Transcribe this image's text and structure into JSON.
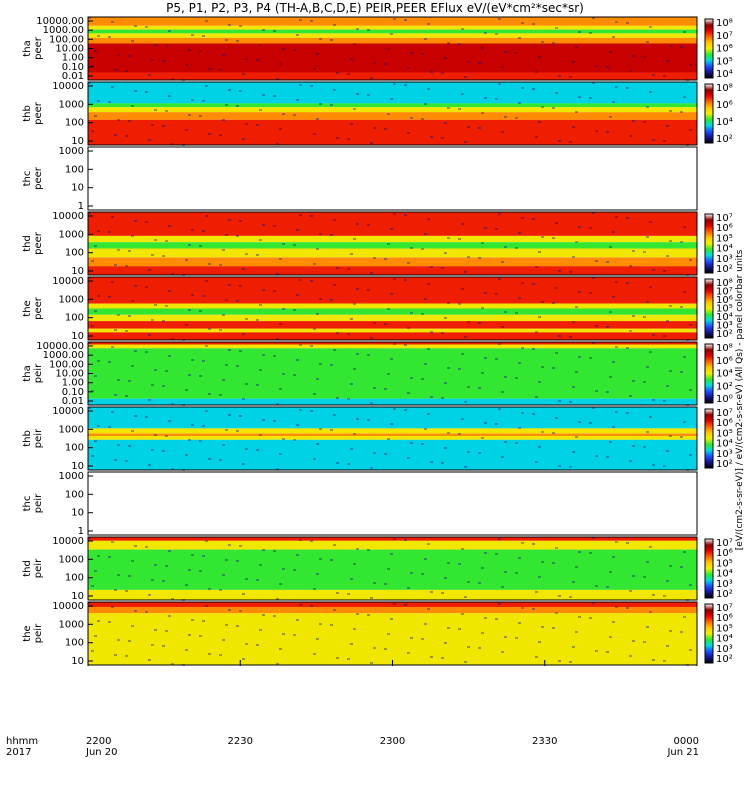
{
  "title": "P5, P1, P2, P3, P4 (TH-A,B,C,D,E) PEIR,PEER EFlux eV/(eV*cm²*sec*sr)",
  "x_axis": {
    "label_rows": [
      "hhmm",
      "2017"
    ],
    "ticks": [
      {
        "time": "2200",
        "date": "Jun 20"
      },
      {
        "time": "2230",
        "date": ""
      },
      {
        "time": "2300",
        "date": ""
      },
      {
        "time": "2330",
        "date": ""
      },
      {
        "time": "0000",
        "date": "Jun 21"
      }
    ]
  },
  "right_axis_text": "[eV/(cm2-s-sr-eV)] / eV/(cm2-s-sr-eV) (All Qs) - panel colorbar units",
  "colors": {
    "dark_red": "#c80000",
    "red": "#f01e00",
    "orange": "#ff8c00",
    "yellow": "#f0e600",
    "green": "#32e632",
    "cyan": "#00d2e6",
    "blue": "#1e32dc",
    "navy": "#0a0a78"
  },
  "chart_data": [
    {
      "type": "heatmap",
      "name": "tha peer",
      "ylabel": [
        "tha",
        "peer"
      ],
      "yticks": [
        "10000.00",
        "1000.00",
        "100.00",
        "10.00",
        "1.00",
        "0.10",
        "0.01"
      ],
      "cbar_ticks": [
        "10⁸",
        "10⁷",
        "10⁶",
        "10⁵",
        "10⁴"
      ],
      "colorbar": true,
      "bands": [
        [
          "orange",
          0,
          0.14
        ],
        [
          "yellow",
          0.14,
          0.2
        ],
        [
          "green",
          0.2,
          0.26
        ],
        [
          "yellow",
          0.26,
          0.33
        ],
        [
          "orange",
          0.33,
          0.42
        ],
        [
          "dark_red",
          0.42,
          0.88
        ],
        [
          "red",
          0.88,
          1
        ]
      ]
    },
    {
      "type": "heatmap",
      "name": "thb peer",
      "ylabel": [
        "thb",
        "peer"
      ],
      "yticks": [
        "10000",
        "1000",
        "100",
        "10"
      ],
      "cbar_ticks": [
        "10⁸",
        "10⁶",
        "10⁴",
        "10²"
      ],
      "colorbar": true,
      "bands": [
        [
          "cyan",
          0,
          0.34
        ],
        [
          "green",
          0.34,
          0.4
        ],
        [
          "yellow",
          0.4,
          0.48
        ],
        [
          "orange",
          0.48,
          0.6
        ],
        [
          "red",
          0.6,
          1
        ]
      ]
    },
    {
      "type": "heatmap",
      "name": "thc peer",
      "ylabel": [
        "thc",
        "peer"
      ],
      "yticks": [
        "1000",
        "100",
        "10",
        "1"
      ],
      "cbar_ticks": [],
      "colorbar": false,
      "bands": []
    },
    {
      "type": "heatmap",
      "name": "thd peer",
      "ylabel": [
        "thd",
        "peer"
      ],
      "yticks": [
        "10000",
        "1000",
        "100",
        "10"
      ],
      "cbar_ticks": [
        "10⁷",
        "10⁶",
        "10⁵",
        "10⁴",
        "10³",
        "10²"
      ],
      "colorbar": true,
      "bands": [
        [
          "red",
          0,
          0.38
        ],
        [
          "yellow",
          0.38,
          0.48
        ],
        [
          "green",
          0.48,
          0.58
        ],
        [
          "yellow",
          0.58,
          0.72
        ],
        [
          "orange",
          0.72,
          0.86
        ],
        [
          "red",
          0.86,
          1
        ]
      ]
    },
    {
      "type": "heatmap",
      "name": "the peer",
      "ylabel": [
        "the",
        "peer"
      ],
      "yticks": [
        "10000",
        "1000",
        "100",
        "10"
      ],
      "cbar_ticks": [
        "10⁸",
        "10⁷",
        "10⁶",
        "10⁵",
        "10⁴",
        "10³",
        "10²"
      ],
      "colorbar": true,
      "bands": [
        [
          "red",
          0,
          0.42
        ],
        [
          "yellow",
          0.42,
          0.5
        ],
        [
          "green",
          0.5,
          0.6
        ],
        [
          "yellow",
          0.6,
          0.7
        ],
        [
          "red",
          0.7,
          0.82
        ],
        [
          "yellow",
          0.82,
          0.88
        ],
        [
          "red",
          0.88,
          1
        ]
      ]
    },
    {
      "type": "heatmap",
      "name": "tha peir",
      "ylabel": [
        "tha",
        "peir"
      ],
      "yticks": [
        "10000.00",
        "1000.00",
        "100.00",
        "10.00",
        "1.00",
        "0.10",
        "0.01"
      ],
      "cbar_ticks": [
        "10⁸",
        "10⁶",
        "10⁴",
        "10²",
        "10⁰"
      ],
      "colorbar": true,
      "bands": [
        [
          "red",
          0,
          0.04
        ],
        [
          "yellow",
          0.04,
          0.1
        ],
        [
          "green",
          0.1,
          0.9
        ],
        [
          "cyan",
          0.9,
          1
        ]
      ]
    },
    {
      "type": "heatmap",
      "name": "thb peir",
      "ylabel": [
        "thb",
        "peir"
      ],
      "yticks": [
        "10000",
        "1000",
        "100",
        "10"
      ],
      "cbar_ticks": [
        "10⁷",
        "10⁶",
        "10⁵",
        "10⁴",
        "10³",
        "10²"
      ],
      "colorbar": true,
      "bands": [
        [
          "cyan",
          0,
          0.34
        ],
        [
          "yellow",
          0.34,
          0.42
        ],
        [
          "orange",
          0.42,
          0.46
        ],
        [
          "yellow",
          0.46,
          0.52
        ],
        [
          "cyan",
          0.52,
          1
        ]
      ]
    },
    {
      "type": "heatmap",
      "name": "thc peir",
      "ylabel": [
        "thc",
        "peir"
      ],
      "yticks": [
        "1000",
        "100",
        "10",
        "1"
      ],
      "cbar_ticks": [],
      "colorbar": false,
      "bands": []
    },
    {
      "type": "heatmap",
      "name": "thd peir",
      "ylabel": [
        "thd",
        "peir"
      ],
      "yticks": [
        "10000",
        "1000",
        "100",
        "10"
      ],
      "cbar_ticks": [
        "10⁷",
        "10⁶",
        "10⁵",
        "10⁴",
        "10³",
        "10²"
      ],
      "colorbar": true,
      "bands": [
        [
          "red",
          0,
          0.06
        ],
        [
          "yellow",
          0.06,
          0.2
        ],
        [
          "green",
          0.2,
          0.84
        ],
        [
          "yellow",
          0.84,
          1
        ]
      ]
    },
    {
      "type": "heatmap",
      "name": "the peir",
      "ylabel": [
        "the",
        "peir"
      ],
      "yticks": [
        "10000",
        "1000",
        "100",
        "10"
      ],
      "cbar_ticks": [
        "10⁷",
        "10⁶",
        "10⁵",
        "10⁴",
        "10³",
        "10²"
      ],
      "colorbar": true,
      "bands": [
        [
          "red",
          0,
          0.08
        ],
        [
          "orange",
          0.08,
          0.18
        ],
        [
          "yellow",
          0.18,
          1
        ]
      ]
    }
  ]
}
